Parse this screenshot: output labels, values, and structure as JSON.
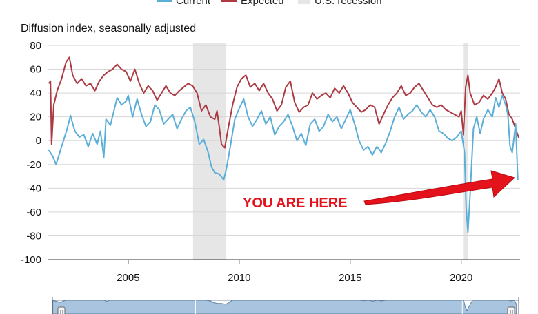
{
  "chart_data": {
    "type": "line",
    "title": "",
    "ylabel": "Diffusion index, seasonally adjusted",
    "xlabel": "",
    "ylim": [
      -100,
      80
    ],
    "yticks": [
      80,
      60,
      40,
      20,
      0,
      -20,
      -40,
      -60,
      -80,
      -100
    ],
    "xlim": [
      2001.4,
      2022.65
    ],
    "xticks": [
      2005,
      2010,
      2015,
      2020
    ],
    "grid": true,
    "legend_position": "top",
    "legend": [
      {
        "name": "Current",
        "color": "#5aaed8",
        "kind": "line"
      },
      {
        "name": "Expected",
        "color": "#ad3a43",
        "kind": "line"
      },
      {
        "name": "U.S. recession",
        "color": "#e6e6e6",
        "kind": "box"
      }
    ],
    "recessions": [
      [
        2007.92,
        2009.42
      ],
      [
        2020.08,
        2020.3
      ]
    ],
    "annotation": {
      "text": "YOU ARE HERE",
      "color": "#e3121b",
      "points_to": [
        2022.55,
        -33
      ]
    },
    "series": [
      {
        "name": "Current",
        "color": "#5aaed8",
        "points": [
          [
            2001.42,
            -8
          ],
          [
            2001.6,
            -13
          ],
          [
            2001.75,
            -20
          ],
          [
            2002.0,
            -5
          ],
          [
            2002.25,
            10
          ],
          [
            2002.4,
            21
          ],
          [
            2002.6,
            8
          ],
          [
            2002.8,
            3
          ],
          [
            2003.0,
            5
          ],
          [
            2003.2,
            -5
          ],
          [
            2003.4,
            6
          ],
          [
            2003.6,
            -3
          ],
          [
            2003.75,
            8
          ],
          [
            2003.9,
            -14
          ],
          [
            2004.0,
            18
          ],
          [
            2004.2,
            13
          ],
          [
            2004.5,
            36
          ],
          [
            2004.7,
            30
          ],
          [
            2004.9,
            33
          ],
          [
            2005.0,
            38
          ],
          [
            2005.2,
            20
          ],
          [
            2005.4,
            35
          ],
          [
            2005.6,
            22
          ],
          [
            2005.8,
            12
          ],
          [
            2006.0,
            16
          ],
          [
            2006.2,
            30
          ],
          [
            2006.4,
            26
          ],
          [
            2006.6,
            14
          ],
          [
            2006.8,
            18
          ],
          [
            2007.0,
            22
          ],
          [
            2007.2,
            10
          ],
          [
            2007.4,
            18
          ],
          [
            2007.6,
            25
          ],
          [
            2007.8,
            28
          ],
          [
            2008.0,
            16
          ],
          [
            2008.2,
            -3
          ],
          [
            2008.4,
            1
          ],
          [
            2008.6,
            -10
          ],
          [
            2008.75,
            -22
          ],
          [
            2008.9,
            -27
          ],
          [
            2009.1,
            -28
          ],
          [
            2009.3,
            -33
          ],
          [
            2009.42,
            -24
          ],
          [
            2009.6,
            -5
          ],
          [
            2009.8,
            18
          ],
          [
            2010.0,
            27
          ],
          [
            2010.2,
            35
          ],
          [
            2010.4,
            20
          ],
          [
            2010.6,
            12
          ],
          [
            2010.8,
            18
          ],
          [
            2011.0,
            25
          ],
          [
            2011.2,
            14
          ],
          [
            2011.4,
            20
          ],
          [
            2011.6,
            5
          ],
          [
            2011.8,
            12
          ],
          [
            2012.0,
            16
          ],
          [
            2012.2,
            22
          ],
          [
            2012.4,
            12
          ],
          [
            2012.6,
            0
          ],
          [
            2012.8,
            6
          ],
          [
            2013.0,
            -4
          ],
          [
            2013.2,
            14
          ],
          [
            2013.4,
            18
          ],
          [
            2013.6,
            8
          ],
          [
            2013.8,
            12
          ],
          [
            2014.0,
            22
          ],
          [
            2014.2,
            16
          ],
          [
            2014.4,
            20
          ],
          [
            2014.6,
            10
          ],
          [
            2014.8,
            18
          ],
          [
            2015.0,
            26
          ],
          [
            2015.2,
            14
          ],
          [
            2015.4,
            0
          ],
          [
            2015.6,
            -8
          ],
          [
            2015.8,
            -5
          ],
          [
            2016.0,
            -12
          ],
          [
            2016.2,
            -5
          ],
          [
            2016.4,
            -10
          ],
          [
            2016.6,
            -2
          ],
          [
            2016.8,
            8
          ],
          [
            2017.0,
            20
          ],
          [
            2017.2,
            28
          ],
          [
            2017.4,
            18
          ],
          [
            2017.6,
            22
          ],
          [
            2017.8,
            25
          ],
          [
            2018.0,
            30
          ],
          [
            2018.2,
            24
          ],
          [
            2018.4,
            20
          ],
          [
            2018.6,
            26
          ],
          [
            2018.8,
            20
          ],
          [
            2019.0,
            8
          ],
          [
            2019.2,
            6
          ],
          [
            2019.4,
            2
          ],
          [
            2019.6,
            0
          ],
          [
            2019.8,
            3
          ],
          [
            2020.0,
            8
          ],
          [
            2020.15,
            -10
          ],
          [
            2020.22,
            -56
          ],
          [
            2020.3,
            -77
          ],
          [
            2020.4,
            -45
          ],
          [
            2020.55,
            10
          ],
          [
            2020.7,
            20
          ],
          [
            2020.85,
            6
          ],
          [
            2021.0,
            18
          ],
          [
            2021.2,
            26
          ],
          [
            2021.4,
            20
          ],
          [
            2021.55,
            36
          ],
          [
            2021.7,
            28
          ],
          [
            2021.85,
            38
          ],
          [
            2022.0,
            30
          ],
          [
            2022.1,
            22
          ],
          [
            2022.2,
            -5
          ],
          [
            2022.3,
            -10
          ],
          [
            2022.45,
            14
          ],
          [
            2022.55,
            -33
          ]
        ]
      },
      {
        "name": "Expected",
        "color": "#ad3a43",
        "points": [
          [
            2001.42,
            48
          ],
          [
            2001.5,
            50
          ],
          [
            2001.55,
            -3
          ],
          [
            2001.65,
            30
          ],
          [
            2001.8,
            42
          ],
          [
            2002.0,
            52
          ],
          [
            2002.2,
            66
          ],
          [
            2002.35,
            70
          ],
          [
            2002.5,
            55
          ],
          [
            2002.7,
            48
          ],
          [
            2002.9,
            52
          ],
          [
            2003.1,
            46
          ],
          [
            2003.3,
            48
          ],
          [
            2003.5,
            42
          ],
          [
            2003.7,
            50
          ],
          [
            2003.9,
            55
          ],
          [
            2004.1,
            58
          ],
          [
            2004.3,
            60
          ],
          [
            2004.5,
            64
          ],
          [
            2004.7,
            60
          ],
          [
            2004.9,
            58
          ],
          [
            2005.1,
            50
          ],
          [
            2005.3,
            60
          ],
          [
            2005.5,
            48
          ],
          [
            2005.7,
            40
          ],
          [
            2005.9,
            46
          ],
          [
            2006.1,
            42
          ],
          [
            2006.3,
            34
          ],
          [
            2006.5,
            40
          ],
          [
            2006.7,
            46
          ],
          [
            2006.9,
            40
          ],
          [
            2007.1,
            38
          ],
          [
            2007.3,
            42
          ],
          [
            2007.5,
            45
          ],
          [
            2007.7,
            48
          ],
          [
            2007.9,
            46
          ],
          [
            2008.1,
            40
          ],
          [
            2008.3,
            25
          ],
          [
            2008.5,
            30
          ],
          [
            2008.7,
            20
          ],
          [
            2008.9,
            18
          ],
          [
            2009.0,
            25
          ],
          [
            2009.1,
            12
          ],
          [
            2009.2,
            -3
          ],
          [
            2009.35,
            -6
          ],
          [
            2009.5,
            10
          ],
          [
            2009.7,
            30
          ],
          [
            2009.9,
            45
          ],
          [
            2010.1,
            52
          ],
          [
            2010.3,
            55
          ],
          [
            2010.5,
            45
          ],
          [
            2010.7,
            48
          ],
          [
            2010.9,
            42
          ],
          [
            2011.1,
            48
          ],
          [
            2011.3,
            40
          ],
          [
            2011.5,
            35
          ],
          [
            2011.7,
            25
          ],
          [
            2011.9,
            30
          ],
          [
            2012.1,
            45
          ],
          [
            2012.3,
            50
          ],
          [
            2012.5,
            32
          ],
          [
            2012.7,
            24
          ],
          [
            2012.9,
            28
          ],
          [
            2013.1,
            30
          ],
          [
            2013.3,
            40
          ],
          [
            2013.5,
            35
          ],
          [
            2013.7,
            38
          ],
          [
            2013.9,
            40
          ],
          [
            2014.1,
            36
          ],
          [
            2014.3,
            44
          ],
          [
            2014.5,
            40
          ],
          [
            2014.7,
            46
          ],
          [
            2014.9,
            40
          ],
          [
            2015.1,
            32
          ],
          [
            2015.3,
            28
          ],
          [
            2015.5,
            24
          ],
          [
            2015.7,
            26
          ],
          [
            2015.9,
            30
          ],
          [
            2016.1,
            28
          ],
          [
            2016.3,
            14
          ],
          [
            2016.5,
            22
          ],
          [
            2016.7,
            30
          ],
          [
            2016.9,
            36
          ],
          [
            2017.1,
            40
          ],
          [
            2017.3,
            46
          ],
          [
            2017.5,
            38
          ],
          [
            2017.7,
            40
          ],
          [
            2017.9,
            45
          ],
          [
            2018.1,
            48
          ],
          [
            2018.3,
            42
          ],
          [
            2018.5,
            36
          ],
          [
            2018.7,
            30
          ],
          [
            2018.9,
            28
          ],
          [
            2019.1,
            30
          ],
          [
            2019.3,
            26
          ],
          [
            2019.5,
            24
          ],
          [
            2019.7,
            22
          ],
          [
            2019.9,
            20
          ],
          [
            2020.0,
            25
          ],
          [
            2020.1,
            5
          ],
          [
            2020.2,
            45
          ],
          [
            2020.3,
            55
          ],
          [
            2020.4,
            40
          ],
          [
            2020.6,
            30
          ],
          [
            2020.8,
            32
          ],
          [
            2021.0,
            38
          ],
          [
            2021.2,
            35
          ],
          [
            2021.4,
            40
          ],
          [
            2021.55,
            45
          ],
          [
            2021.7,
            52
          ],
          [
            2021.85,
            40
          ],
          [
            2022.0,
            35
          ],
          [
            2022.15,
            22
          ],
          [
            2022.3,
            18
          ],
          [
            2022.45,
            10
          ],
          [
            2022.6,
            2
          ]
        ]
      }
    ]
  }
}
